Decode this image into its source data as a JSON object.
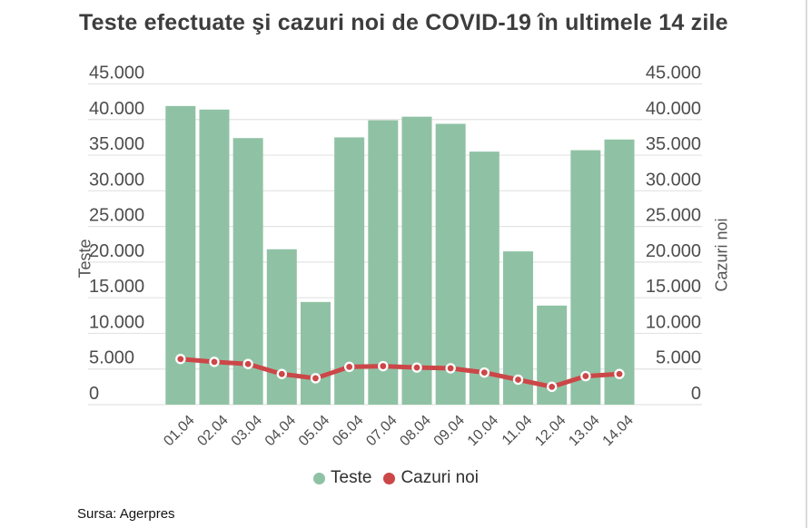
{
  "page": {
    "source_note": "Sursa: Agerpres"
  },
  "chart_data": {
    "type": "combo-bar-line",
    "title": "Teste efectuate şi cazuri noi de COVID-19 în ultimele 14 zile",
    "categories": [
      "01.04",
      "02.04",
      "03.04",
      "04.04",
      "05.04",
      "06.04",
      "07.04",
      "08.04",
      "09.04",
      "10.04",
      "11.04",
      "12.04",
      "13.04",
      "14.04"
    ],
    "series": [
      {
        "name": "Teste",
        "type": "bar",
        "axis": "left",
        "color": "#8fc2a4",
        "values": [
          41900,
          41400,
          37400,
          21800,
          14400,
          37500,
          39900,
          40400,
          39400,
          35500,
          21500,
          13900,
          35700,
          37200
        ]
      },
      {
        "name": "Cazuri noi",
        "type": "line",
        "axis": "right",
        "color": "#cb4748",
        "marker_fill": "#cb4748",
        "marker_ring": "#ffffff",
        "values": [
          6400,
          6000,
          5700,
          4300,
          3700,
          5300,
          5400,
          5200,
          5100,
          4500,
          3500,
          2500,
          4000,
          4300
        ]
      }
    ],
    "left_axis": {
      "label": "Teste",
      "min": 0,
      "max": 45000,
      "tick_step": 5000
    },
    "right_axis": {
      "label": "Cazuri noi",
      "min": 0,
      "max": 45000,
      "tick_step": 5000
    },
    "tick_format": "thousands-dot",
    "grid": true,
    "grid_color": "#e3e3e3",
    "tick_label_color": "#4d4d4d",
    "legend_position": "bottom"
  }
}
